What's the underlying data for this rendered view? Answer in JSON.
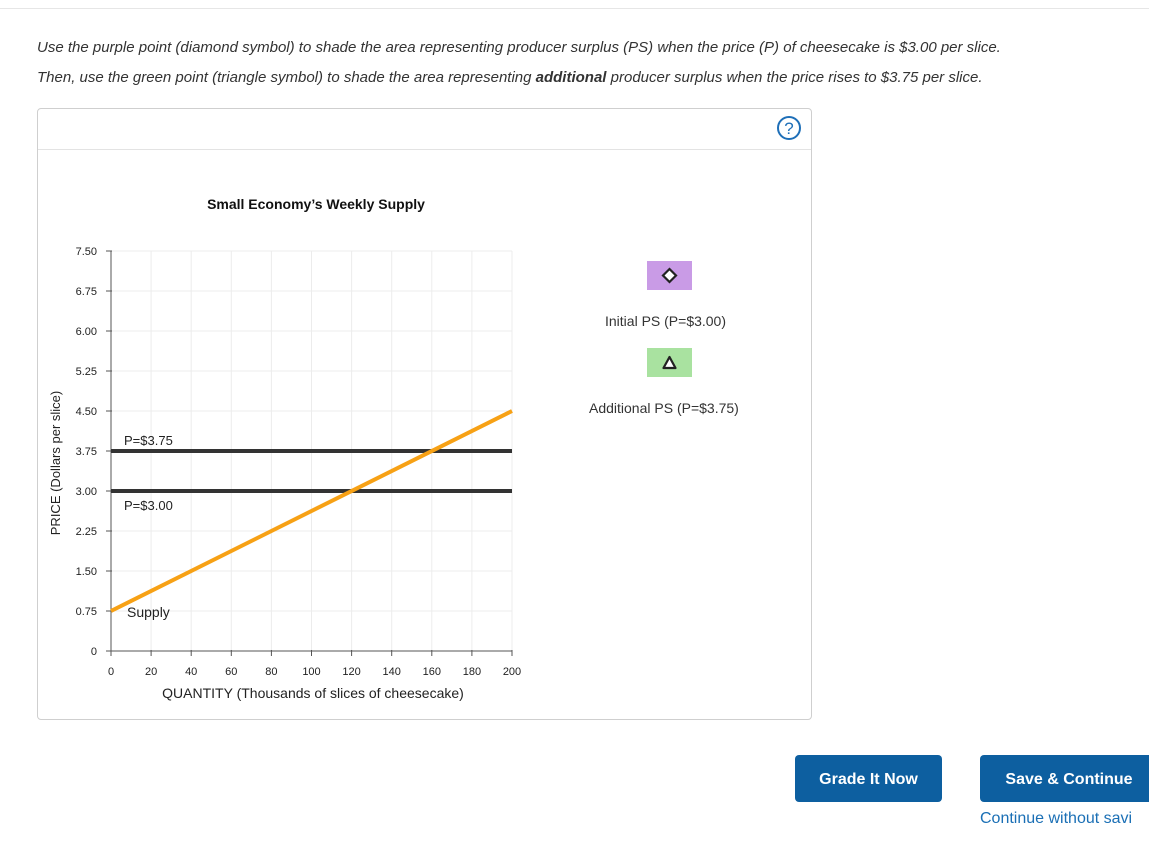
{
  "instructions": {
    "line1": "Use the purple point (diamond symbol) to shade the area representing producer surplus (PS) when the price (P) of cheesecake is $3.00 per slice.",
    "line2_before": "Then, use the green point (triangle symbol) to shade the area representing ",
    "line2_bold": "additional",
    "line2_after": " producer surplus when the price rises to $3.75 per slice."
  },
  "help_icon": {
    "icon": "question-circle-icon",
    "symbol": "?"
  },
  "chart_data": {
    "type": "line",
    "title": "Small Economy’s Weekly Supply",
    "xlabel": "QUANTITY (Thousands of slices of cheesecake)",
    "ylabel": "PRICE (Dollars per slice)",
    "xlim": [
      0,
      200
    ],
    "ylim": [
      0,
      7.5
    ],
    "x_ticks": [
      0,
      20,
      40,
      60,
      80,
      100,
      120,
      140,
      160,
      180,
      200
    ],
    "y_ticks": [
      "0",
      "0.75",
      "1.50",
      "2.25",
      "3.00",
      "3.75",
      "4.50",
      "5.25",
      "6.00",
      "6.75",
      "7.50"
    ],
    "grid": true,
    "series": [
      {
        "name": "Supply",
        "color": "#f7a115",
        "points": [
          [
            0,
            0.75
          ],
          [
            200,
            4.5
          ]
        ]
      }
    ],
    "price_lines": [
      {
        "label": "P=$3.75",
        "price": 3.75,
        "color": "#333333"
      },
      {
        "label": "P=$3.00",
        "price": 3.0,
        "color": "#333333"
      }
    ]
  },
  "tools": [
    {
      "label": "Initial PS (P=$3.00)",
      "icon": "diamond-icon",
      "color": "#c99be6"
    },
    {
      "label": "Additional PS (P=$3.75)",
      "icon": "triangle-icon",
      "color": "#a9e2a0"
    }
  ],
  "buttons": {
    "grade": "Grade It Now",
    "save": "Save & Continue",
    "continue_link": "Continue without savi"
  },
  "colors": {
    "button_blue": "#0d5fa0",
    "link_blue": "#1a6fb5"
  }
}
